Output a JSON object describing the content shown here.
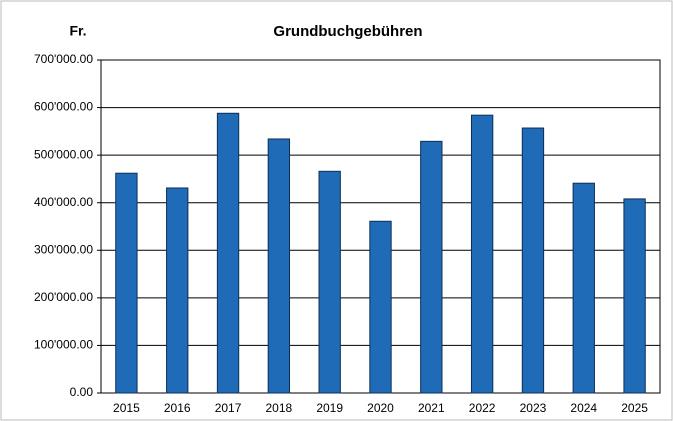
{
  "chart_data": {
    "type": "bar",
    "title": "Grundbuchgebühren",
    "y_label": "Fr.",
    "categories": [
      "2015",
      "2016",
      "2017",
      "2018",
      "2019",
      "2020",
      "2021",
      "2022",
      "2023",
      "2024",
      "2025"
    ],
    "values": [
      462000,
      431000,
      588000,
      534000,
      466000,
      361000,
      529000,
      584000,
      557000,
      441000,
      408000
    ],
    "color": "#1f6bb8",
    "ylim": [
      0,
      700000
    ],
    "yticks": [
      {
        "value": 0,
        "label": "0.00"
      },
      {
        "value": 100000,
        "label": "100'000.00"
      },
      {
        "value": 200000,
        "label": "200'000.00"
      },
      {
        "value": 300000,
        "label": "300'000.00"
      },
      {
        "value": 400000,
        "label": "400'000.00"
      },
      {
        "value": 500000,
        "label": "500'000.00"
      },
      {
        "value": 600000,
        "label": "600'000.00"
      },
      {
        "value": 700000,
        "label": "700'000.00"
      }
    ],
    "grid": true
  }
}
